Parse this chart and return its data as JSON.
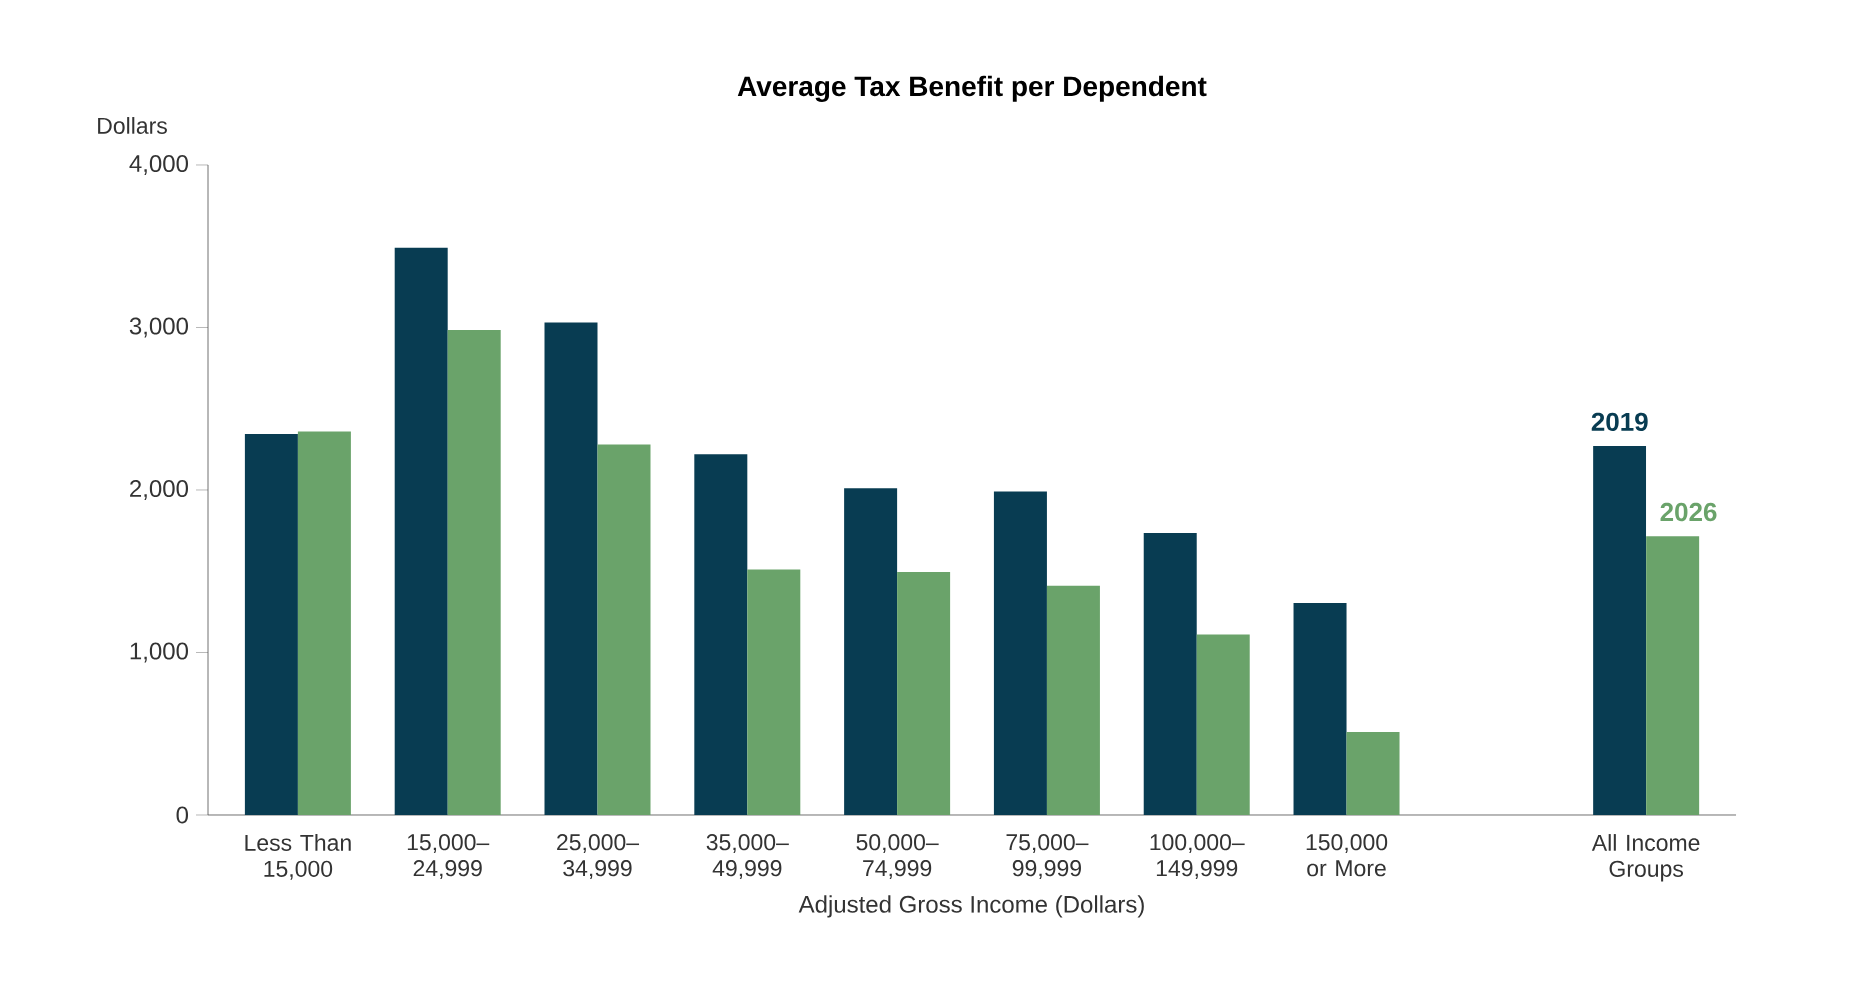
{
  "chart_data": {
    "type": "bar",
    "title": "Average Tax Benefit per Dependent",
    "xlabel": "Adjusted Gross Income (Dollars)",
    "ylabel": "Dollars",
    "categories": [
      "Less Than 15,000",
      "15,000–24,999",
      "25,000–34,999",
      "35,000–49,999",
      "50,000–74,999",
      "75,000–99,999",
      "100,000–149,999",
      "150,000 or More",
      null,
      "All Income Groups"
    ],
    "series": [
      {
        "name": "2019",
        "color": "#083c52",
        "values": [
          2345,
          3490,
          3030,
          2220,
          2010,
          1990,
          1735,
          1305,
          null,
          2270
        ]
      },
      {
        "name": "2026",
        "color": "#6aa36a",
        "values": [
          2360,
          2985,
          2280,
          1510,
          1495,
          1410,
          1110,
          510,
          null,
          1715
        ]
      }
    ],
    "ylim": [
      0,
      4000
    ],
    "yticks": [
      {
        "value": 0,
        "label": "0"
      },
      {
        "value": 1000,
        "label": "1,000"
      },
      {
        "value": 2000,
        "label": "2,000"
      },
      {
        "value": 3000,
        "label": "3,000"
      },
      {
        "value": 4000,
        "label": "4,000"
      }
    ],
    "grid": false
  }
}
